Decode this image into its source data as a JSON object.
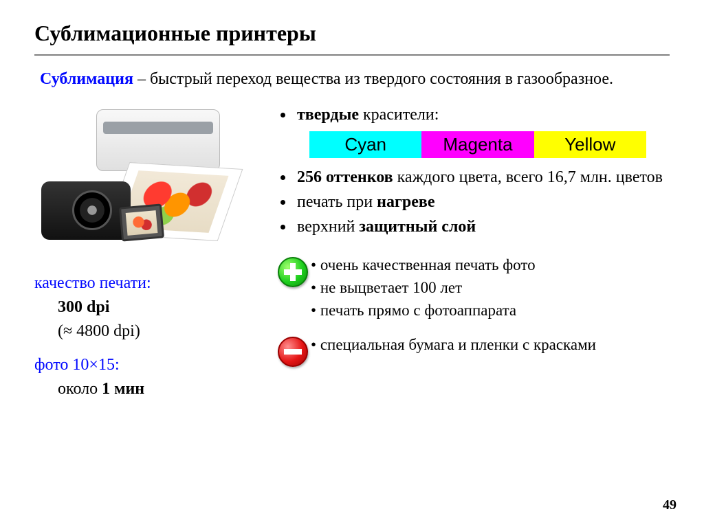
{
  "title": "Сублимационные принтеры",
  "intro": {
    "term": "Сублимация",
    "rest": " – быстрый переход вещества из твердого состояния в газообразное."
  },
  "bullets": {
    "item1_bold": "твердые",
    "item1_rest": " красители:",
    "colors": [
      {
        "label": "Cyan",
        "bg": "#00ffff"
      },
      {
        "label": "Magenta",
        "bg": "#ff00ff"
      },
      {
        "label": "Yellow",
        "bg": "#ffff00"
      }
    ],
    "item2_bold": "256 оттенков",
    "item2_rest": " каждого цвета, всего 16,7 млн. цветов",
    "item3_pre": "печать при ",
    "item3_bold": "нагреве",
    "item4_pre": "верхний ",
    "item4_bold": "защитный слой"
  },
  "specs": {
    "quality_label": "качество печати:",
    "quality_value_bold": "300 dpi",
    "quality_value_note": "(≈ 4800 dpi)",
    "photo_label": "фото 10×15:",
    "photo_value_pre": "около ",
    "photo_value_bold": "1 мин"
  },
  "pros": [
    "очень качественная печать фото",
    "не выцветает 100 лет",
    "печать прямо с фотоаппарата"
  ],
  "cons": [
    "специальная бумага и пленки с красками"
  ],
  "page_number": "49"
}
